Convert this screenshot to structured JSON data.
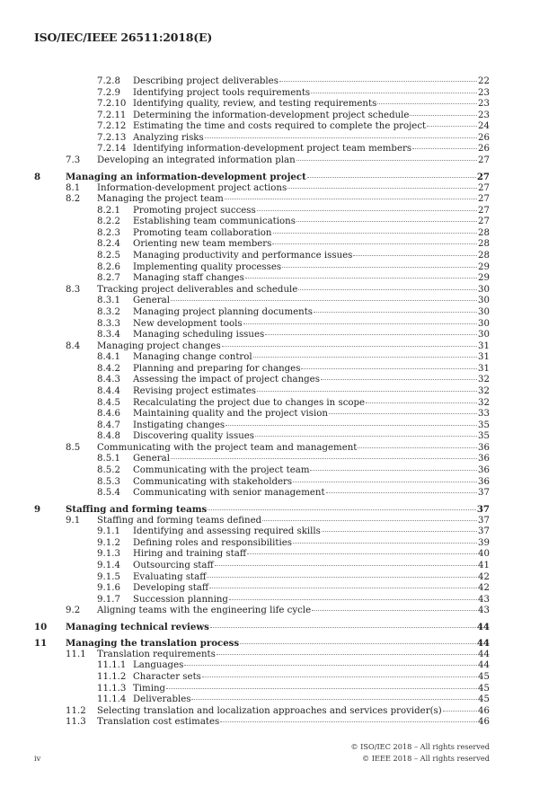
{
  "header": {
    "doc_id": "ISO/IEC/IEEE 26511:2018(E)"
  },
  "toc": [
    {
      "level": 3,
      "num": "7.2.8",
      "title": "Describing project deliverables",
      "page": "22"
    },
    {
      "level": 3,
      "num": "7.2.9",
      "title": "Identifying project tools requirements",
      "page": "23"
    },
    {
      "level": 3,
      "num": "7.2.10",
      "title": "Identifying quality, review, and testing requirements",
      "page": "23"
    },
    {
      "level": 3,
      "num": "7.2.11",
      "title": "Determining the information-development project schedule",
      "page": "23"
    },
    {
      "level": 3,
      "num": "7.2.12",
      "title": "Estimating the time and costs required to complete the project",
      "page": "24"
    },
    {
      "level": 3,
      "num": "7.2.13",
      "title": "Analyzing risks",
      "page": "26"
    },
    {
      "level": 3,
      "num": "7.2.14",
      "title": "Identifying information-development project team members",
      "page": "26"
    },
    {
      "level": 2,
      "num": "7.3",
      "title": "Developing an integrated information plan",
      "page": "27"
    },
    {
      "level": 1,
      "num": "8",
      "title": "Managing an information-development project",
      "page": "27"
    },
    {
      "level": 2,
      "num": "8.1",
      "title": "Information-development project actions",
      "page": "27"
    },
    {
      "level": 2,
      "num": "8.2",
      "title": "Managing the project team",
      "page": "27"
    },
    {
      "level": 3,
      "num": "8.2.1",
      "title": "Promoting project success",
      "page": "27"
    },
    {
      "level": 3,
      "num": "8.2.2",
      "title": "Establishing team communications",
      "page": "27"
    },
    {
      "level": 3,
      "num": "8.2.3",
      "title": "Promoting team collaboration",
      "page": "28"
    },
    {
      "level": 3,
      "num": "8.2.4",
      "title": "Orienting new team members",
      "page": "28"
    },
    {
      "level": 3,
      "num": "8.2.5",
      "title": "Managing productivity and performance issues",
      "page": "28"
    },
    {
      "level": 3,
      "num": "8.2.6",
      "title": "Implementing quality processes",
      "page": "29"
    },
    {
      "level": 3,
      "num": "8.2.7",
      "title": "Managing staff changes",
      "page": "29"
    },
    {
      "level": 2,
      "num": "8.3",
      "title": "Tracking project deliverables and schedule",
      "page": "30"
    },
    {
      "level": 3,
      "num": "8.3.1",
      "title": "General",
      "page": "30"
    },
    {
      "level": 3,
      "num": "8.3.2",
      "title": "Managing project planning documents",
      "page": "30"
    },
    {
      "level": 3,
      "num": "8.3.3",
      "title": "New development tools",
      "page": "30"
    },
    {
      "level": 3,
      "num": "8.3.4",
      "title": "Managing scheduling issues",
      "page": "30"
    },
    {
      "level": 2,
      "num": "8.4",
      "title": "Managing project changes",
      "page": "31"
    },
    {
      "level": 3,
      "num": "8.4.1",
      "title": "Managing change control",
      "page": "31"
    },
    {
      "level": 3,
      "num": "8.4.2",
      "title": "Planning and preparing for changes",
      "page": "31"
    },
    {
      "level": 3,
      "num": "8.4.3",
      "title": "Assessing the impact of project changes",
      "page": "32"
    },
    {
      "level": 3,
      "num": "8.4.4",
      "title": "Revising project estimates",
      "page": "32"
    },
    {
      "level": 3,
      "num": "8.4.5",
      "title": "Recalculating the project due to changes in scope",
      "page": "32"
    },
    {
      "level": 3,
      "num": "8.4.6",
      "title": "Maintaining quality and the project vision",
      "page": "33"
    },
    {
      "level": 3,
      "num": "8.4.7",
      "title": "Instigating changes",
      "page": "35"
    },
    {
      "level": 3,
      "num": "8.4.8",
      "title": "Discovering quality issues",
      "page": "35"
    },
    {
      "level": 2,
      "num": "8.5",
      "title": "Communicating with the project team and management",
      "page": "36"
    },
    {
      "level": 3,
      "num": "8.5.1",
      "title": "General",
      "page": "36"
    },
    {
      "level": 3,
      "num": "8.5.2",
      "title": "Communicating with the project team",
      "page": "36"
    },
    {
      "level": 3,
      "num": "8.5.3",
      "title": "Communicating with stakeholders",
      "page": "36"
    },
    {
      "level": 3,
      "num": "8.5.4",
      "title": "Communicating with senior management",
      "page": "37"
    },
    {
      "level": 1,
      "num": "9",
      "title": "Staffing and forming teams",
      "page": "37"
    },
    {
      "level": 2,
      "num": "9.1",
      "title": "Staffing and forming teams defined",
      "page": "37"
    },
    {
      "level": 3,
      "num": "9.1.1",
      "title": "Identifying and assessing required skills",
      "page": "37"
    },
    {
      "level": 3,
      "num": "9.1.2",
      "title": "Defining roles and responsibilities",
      "page": "39"
    },
    {
      "level": 3,
      "num": "9.1.3",
      "title": "Hiring and training staff",
      "page": "40"
    },
    {
      "level": 3,
      "num": "9.1.4",
      "title": "Outsourcing staff",
      "page": "41"
    },
    {
      "level": 3,
      "num": "9.1.5",
      "title": "Evaluating staff",
      "page": "42"
    },
    {
      "level": 3,
      "num": "9.1.6",
      "title": "Developing staff",
      "page": "42"
    },
    {
      "level": 3,
      "num": "9.1.7",
      "title": "Succession planning",
      "page": "43"
    },
    {
      "level": 2,
      "num": "9.2",
      "title": "Aligning teams with the engineering life cycle",
      "page": "43"
    },
    {
      "level": 1,
      "num": "10",
      "title": "Managing technical reviews",
      "page": "44"
    },
    {
      "level": 1,
      "num": "11",
      "title": "Managing the translation process",
      "page": "44"
    },
    {
      "level": 2,
      "num": "11.1",
      "title": "Translation requirements",
      "page": "44"
    },
    {
      "level": 3,
      "num": "11.1.1",
      "title": "Languages",
      "page": "44"
    },
    {
      "level": 3,
      "num": "11.1.2",
      "title": "Character sets",
      "page": "45"
    },
    {
      "level": 3,
      "num": "11.1.3",
      "title": "Timing",
      "page": "45"
    },
    {
      "level": 3,
      "num": "11.1.4",
      "title": "Deliverables",
      "page": "45"
    },
    {
      "level": 2,
      "num": "11.2",
      "title": "Selecting translation and localization approaches and services provider(s)",
      "page": "46"
    },
    {
      "level": 2,
      "num": "11.3",
      "title": "Translation cost estimates",
      "page": "46"
    }
  ],
  "footer": {
    "copyright_iso": "© ISO/IEC 2018 – All rights reserved",
    "copyright_ieee": "© IEEE 2018 – All rights reserved",
    "page_number": "iv"
  }
}
